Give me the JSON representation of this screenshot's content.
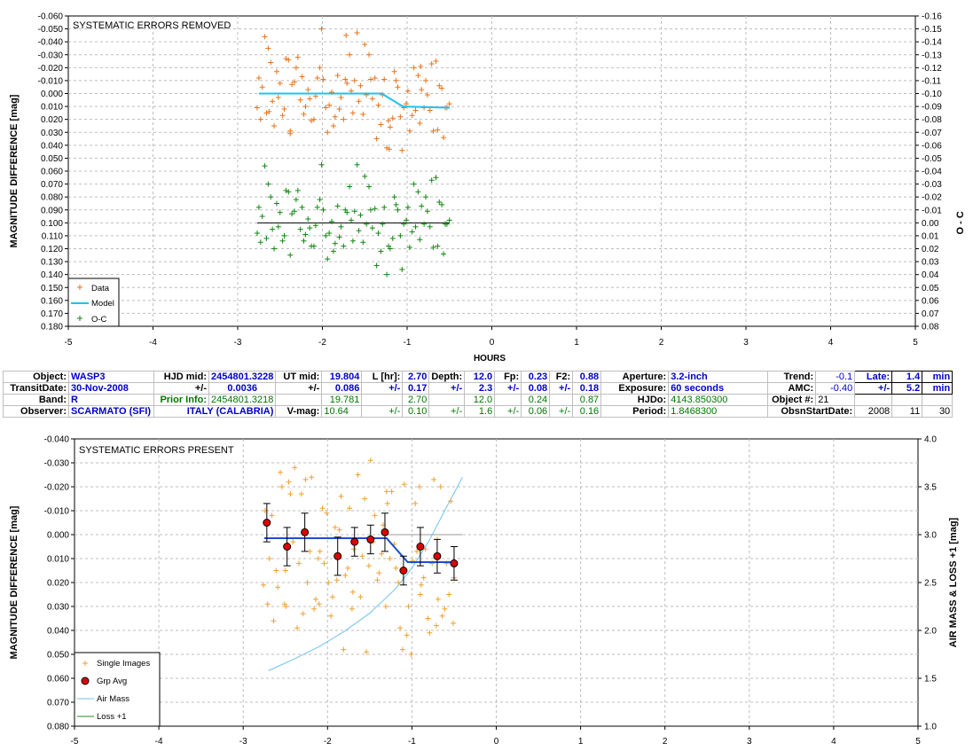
{
  "top_chart": {
    "title": "SYSTEMATIC ERRORS REMOVED",
    "ylabel": "MAGNITUDE DIFFERENCE [mag]",
    "y2label": "O - C",
    "xlabel": "HOURS",
    "xlim": [
      -5,
      5
    ],
    "ylim": [
      -0.06,
      0.18
    ],
    "y2lim": [
      -0.16,
      0.08
    ],
    "x_ticks": [
      "-5",
      "-4",
      "-3",
      "-2",
      "-1",
      "0",
      "1",
      "2",
      "3",
      "4",
      "5"
    ],
    "y_ticks": [
      "-0.060",
      "-0.050",
      "-0.040",
      "-0.030",
      "-0.020",
      "-0.010",
      "0.000",
      "0.010",
      "0.020",
      "0.030",
      "0.040",
      "0.050",
      "0.060",
      "0.070",
      "0.080",
      "0.090",
      "0.100",
      "0.110",
      "0.120",
      "0.130",
      "0.140",
      "0.150",
      "0.160",
      "0.170",
      "0.180"
    ],
    "y2_ticks": [
      "-0.16",
      "-0.15",
      "-0.14",
      "-0.13",
      "-0.12",
      "-0.11",
      "-0.10",
      "-0.09",
      "-0.08",
      "-0.07",
      "-0.06",
      "-0.05",
      "-0.04",
      "-0.03",
      "-0.02",
      "-0.01",
      "0.00",
      "0.01",
      "0.02",
      "0.03",
      "0.04",
      "0.05",
      "0.06",
      "0.07",
      "0.08"
    ],
    "legend": [
      "Data",
      "Model",
      "O-C"
    ],
    "colors": {
      "data": "#e8731a",
      "model": "#1ec3ee",
      "oc": "#118811",
      "axis": "#000000"
    }
  },
  "bottom_chart": {
    "title": "SYSTEMATIC ERRORS PRESENT",
    "ylabel": "MAGNITUDE DIFFERENCE [mag]",
    "y2label": "AIR MASS & LOSS +1 [mag]",
    "xlim": [
      -5,
      5
    ],
    "ylim": [
      -0.04,
      0.08
    ],
    "y2lim": [
      1.0,
      4.0
    ],
    "x_ticks": [
      "-5",
      "-4",
      "-3",
      "-2",
      "-1",
      "0",
      "1",
      "2",
      "3",
      "4",
      "5"
    ],
    "y_ticks": [
      "-0.040",
      "-0.030",
      "-0.020",
      "-0.010",
      "0.000",
      "0.010",
      "0.020",
      "0.030",
      "0.040",
      "0.050",
      "0.060",
      "0.070",
      "0.080"
    ],
    "y2_ticks": [
      "4.0",
      "3.5",
      "3.0",
      "2.5",
      "2.0",
      "1.5",
      "1.0"
    ],
    "legend": [
      "Single Images",
      "Grp Avg",
      "Air Mass",
      "Loss +1"
    ],
    "colors": {
      "single": "#f0a030",
      "grp": "#dd0000",
      "model": "#1e4fd0",
      "airmass": "#6ec3ee",
      "loss": "#2a8a2a"
    }
  },
  "info_table": {
    "row1": [
      "Object:",
      "WASP3",
      "HJD mid:",
      "2454801.3228",
      "UT mid:",
      "19.804",
      "L [hr]:",
      "2.70",
      "Depth:",
      "12.0",
      "Fp:",
      "0.23",
      "F2:",
      "0.88",
      "Aperture:",
      "3.2-inch",
      "Trend:",
      "-0.1",
      "Late:",
      "1.4",
      "min"
    ],
    "row2": [
      "TransitDate:",
      "30-Nov-2008",
      "+/-",
      "0.0036",
      "+/-",
      "0.086",
      "+/-",
      "0.17",
      "+/-",
      "2.3",
      "+/-",
      "0.08",
      "+/-",
      "0.18",
      "Exposure:",
      "60 seconds",
      "AMC:",
      "-0.40",
      "+/-",
      "5.2",
      "min"
    ],
    "row3": [
      "Band:",
      "R",
      "Prior Info:",
      "2454801.3218",
      "",
      "19.781",
      "",
      "2.70",
      "",
      "12.0",
      "",
      "0.24",
      "",
      "0.87",
      "HJDo:",
      "4143.850300",
      "Object #:",
      "21",
      "",
      "",
      ""
    ],
    "row4": [
      "Observer:",
      "SCARMATO (SFI)",
      "ITALY (CALABRIA)",
      "V-mag:",
      "10.64",
      "+/-",
      "0.10",
      "+/-",
      "1.6",
      "+/-",
      "0.06",
      "+/-",
      "0.16",
      "Period:",
      "1.8468300",
      "ObsnStartDate:",
      "2008",
      "11",
      "30"
    ]
  },
  "chart_data": [
    {
      "type": "scatter",
      "title": "SYSTEMATIC ERRORS REMOVED",
      "xlabel": "HOURS",
      "ylabel": "MAGNITUDE DIFFERENCE [mag]",
      "y2label": "O - C",
      "xlim": [
        -5,
        5
      ],
      "ylim": [
        -0.06,
        0.18
      ],
      "y_inverted": true,
      "grid": true,
      "legend_position": "bottom-left",
      "series": [
        {
          "name": "Data",
          "x": [
            -2.77,
            -2.75,
            -2.73,
            -2.71,
            -2.68,
            -2.66,
            -2.64,
            -2.61,
            -2.59,
            -2.57,
            -2.54,
            -2.52,
            -2.5,
            -2.47,
            -2.45,
            -2.43,
            -2.4,
            -2.38,
            -2.36,
            -2.33,
            -2.31,
            -2.29,
            -2.26,
            -2.24,
            -2.22,
            -2.2,
            -2.17,
            -2.15,
            -2.13,
            -2.1,
            -2.08,
            -2.06,
            -2.03,
            -2.01,
            -1.99,
            -1.96,
            -1.94,
            -1.92,
            -1.89,
            -1.87,
            -1.85,
            -1.82,
            -1.8,
            -1.78,
            -1.75,
            -1.73,
            -1.71,
            -1.68,
            -1.66,
            -1.64,
            -1.62,
            -1.59,
            -1.57,
            -1.55,
            -1.52,
            -1.5,
            -1.48,
            -1.45,
            -1.43,
            -1.41,
            -1.38,
            -1.36,
            -1.34,
            -1.31,
            -1.29,
            -1.27,
            -1.24,
            -1.22,
            -1.2,
            -1.17,
            -1.15,
            -1.13,
            -1.11,
            -1.08,
            -1.06,
            -1.04,
            -1.01,
            -0.99,
            -0.97,
            -0.94,
            -0.92,
            -0.9,
            -0.87,
            -0.85,
            -0.83,
            -0.8,
            -0.78,
            -0.76,
            -0.73,
            -0.71,
            -0.69,
            -0.66,
            -0.64,
            -0.62,
            -0.59,
            -0.57,
            -0.55,
            -0.53,
            -0.5,
            -2.63,
            -2.38,
            -1.72,
            -1.21,
            -0.84
          ],
          "y": [
            0.011,
            -0.012,
            0.02,
            -0.005,
            -0.044,
            0.015,
            -0.035,
            -0.024,
            0.006,
            0.025,
            -0.017,
            0.003,
            -0.008,
            0.017,
            0.012,
            -0.027,
            -0.026,
            0.029,
            -0.007,
            -0.009,
            -0.02,
            -0.028,
            0.005,
            -0.013,
            0.016,
            0.01,
            -0.003,
            0.004,
            0.021,
            0.02,
            0.002,
            -0.012,
            -0.02,
            -0.05,
            -0.011,
            0.011,
            0.03,
            0.009,
            -0.001,
            0.025,
            0.018,
            -0.014,
            0.012,
            0.003,
            0.02,
            -0.011,
            -0.008,
            -0.03,
            -0.002,
            0.015,
            -0.01,
            -0.047,
            0.006,
            -0.006,
            0.016,
            -0.038,
            0.001,
            -0.03,
            -0.011,
            0.004,
            -0.012,
            0.035,
            0.009,
            0.024,
            0.001,
            -0.011,
            0.042,
            0.021,
            0.026,
            0.019,
            -0.017,
            -0.01,
            -0.005,
            0.018,
            0.044,
            0.011,
            0.008,
            -0.002,
            0.029,
            0.017,
            -0.02,
            0.013,
            -0.014,
            0.023,
            -0.003,
            0.011,
            -0.01,
            0.001,
            0.013,
            -0.023,
            0.029,
            -0.025,
            0.028,
            -0.006,
            -0.004,
            0.034,
            0.011,
            0.011,
            0.008,
            0.014,
            0.031,
            -0.045,
            0.043,
            -0.021
          ]
        },
        {
          "name": "Model",
          "x": [
            -2.75,
            -1.4,
            -1.3,
            -1.05,
            -0.5
          ],
          "y": [
            0.0,
            0.0,
            0.0,
            0.01,
            0.011
          ]
        },
        {
          "name": "O-C",
          "x": [
            -2.77,
            -2.75,
            -2.73,
            -2.71,
            -2.68,
            -2.66,
            -2.64,
            -2.61,
            -2.59,
            -2.57,
            -2.54,
            -2.52,
            -2.5,
            -2.47,
            -2.45,
            -2.43,
            -2.4,
            -2.38,
            -2.36,
            -2.33,
            -2.31,
            -2.29,
            -2.26,
            -2.24,
            -2.22,
            -2.2,
            -2.17,
            -2.15,
            -2.13,
            -2.1,
            -2.08,
            -2.06,
            -2.03,
            -2.01,
            -1.99,
            -1.96,
            -1.94,
            -1.92,
            -1.89,
            -1.87,
            -1.85,
            -1.82,
            -1.8,
            -1.78,
            -1.75,
            -1.73,
            -1.71,
            -1.68,
            -1.66,
            -1.64,
            -1.62,
            -1.59,
            -1.57,
            -1.55,
            -1.52,
            -1.5,
            -1.48,
            -1.45,
            -1.43,
            -1.41,
            -1.38,
            -1.36,
            -1.34,
            -1.31,
            -1.29,
            -1.27,
            -1.24,
            -1.22,
            -1.2,
            -1.17,
            -1.15,
            -1.13,
            -1.11,
            -1.08,
            -1.06,
            -1.04,
            -1.01,
            -0.99,
            -0.97,
            -0.94,
            -0.92,
            -0.9,
            -0.87,
            -0.85,
            -0.83,
            -0.8,
            -0.78,
            -0.76,
            -0.73,
            -0.71,
            -0.69,
            -0.66,
            -0.64,
            -0.62,
            -0.59,
            -0.57,
            -0.55,
            -0.53,
            -0.5
          ],
          "y": [
            0.008,
            -0.012,
            0.015,
            -0.005,
            -0.044,
            0.012,
            -0.03,
            -0.02,
            0.005,
            0.02,
            -0.015,
            0.003,
            -0.008,
            0.014,
            0.01,
            -0.025,
            -0.024,
            0.025,
            -0.007,
            -0.009,
            -0.018,
            -0.025,
            0.005,
            -0.012,
            0.014,
            0.009,
            -0.003,
            0.004,
            0.018,
            0.018,
            0.002,
            -0.012,
            -0.018,
            -0.045,
            -0.01,
            0.01,
            0.028,
            0.008,
            -0.001,
            0.022,
            0.016,
            -0.013,
            0.011,
            0.003,
            0.018,
            -0.01,
            -0.008,
            -0.028,
            -0.002,
            0.014,
            -0.009,
            -0.045,
            0.006,
            -0.006,
            0.015,
            -0.036,
            0.001,
            -0.028,
            -0.01,
            0.004,
            -0.011,
            0.033,
            0.008,
            0.022,
            0.001,
            -0.012,
            0.04,
            0.018,
            0.02,
            0.012,
            -0.02,
            -0.014,
            -0.01,
            0.01,
            0.036,
            0.001,
            -0.002,
            -0.012,
            0.019,
            0.007,
            -0.03,
            0.003,
            -0.024,
            0.013,
            -0.013,
            0.001,
            -0.02,
            -0.009,
            0.003,
            -0.033,
            0.019,
            -0.035,
            0.018,
            -0.016,
            -0.014,
            0.024,
            0.001,
            0.001,
            -0.002
          ]
        }
      ]
    },
    {
      "type": "scatter",
      "title": "SYSTEMATIC ERRORS PRESENT",
      "ylabel": "MAGNITUDE DIFFERENCE [mag]",
      "y2label": "AIR MASS & LOSS +1 [mag]",
      "xlim": [
        -5,
        5
      ],
      "ylim": [
        -0.04,
        0.08
      ],
      "y2lim": [
        1.0,
        4.0
      ],
      "y_inverted": true,
      "grid": true,
      "legend_position": "bottom-left",
      "series": [
        {
          "name": "Single Images",
          "x": [
            -2.76,
            -2.74,
            -2.71,
            -2.69,
            -2.66,
            -2.64,
            -2.61,
            -2.59,
            -2.56,
            -2.54,
            -2.51,
            -2.49,
            -2.46,
            -2.44,
            -2.41,
            -2.39,
            -2.36,
            -2.34,
            -2.31,
            -2.29,
            -2.26,
            -2.24,
            -2.21,
            -2.19,
            -2.16,
            -2.14,
            -2.11,
            -2.09,
            -2.06,
            -2.04,
            -2.01,
            -1.99,
            -1.96,
            -1.94,
            -1.91,
            -1.89,
            -1.86,
            -1.84,
            -1.81,
            -1.79,
            -1.76,
            -1.74,
            -1.71,
            -1.69,
            -1.66,
            -1.64,
            -1.61,
            -1.59,
            -1.56,
            -1.54,
            -1.51,
            -1.49,
            -1.46,
            -1.44,
            -1.41,
            -1.39,
            -1.36,
            -1.34,
            -1.31,
            -1.29,
            -1.26,
            -1.24,
            -1.21,
            -1.19,
            -1.16,
            -1.14,
            -1.11,
            -1.09,
            -1.06,
            -1.04,
            -1.01,
            -0.99,
            -0.96,
            -0.94,
            -0.91,
            -0.89,
            -0.86,
            -0.84,
            -0.81,
            -0.79,
            -0.76,
            -0.74,
            -0.71,
            -0.69,
            -0.66,
            -0.64,
            -0.61,
            -0.59,
            -0.56,
            -0.54,
            -0.51,
            -0.5,
            -0.7,
            -0.9,
            -1.3,
            -1.7,
            -2.1,
            -2.5
          ],
          "y": [
            0.021,
            -0.01,
            0.029,
            0.01,
            -0.008,
            0.036,
            0.015,
            0.022,
            -0.026,
            -0.02,
            0.029,
            0.03,
            -0.022,
            -0.017,
            0.003,
            -0.028,
            0.039,
            0.012,
            -0.017,
            0.033,
            -0.023,
            0.02,
            0.007,
            -0.024,
            0.031,
            0.027,
            0.01,
            0.007,
            -0.011,
            0.012,
            -0.009,
            0.02,
            0.034,
            0.026,
            -0.003,
            0.019,
            -0.002,
            -0.016,
            0.048,
            0.017,
            0.014,
            -0.011,
            0.031,
            0.006,
            0.003,
            -0.025,
            0.026,
            0.009,
            -0.015,
            0.049,
            0.013,
            -0.031,
            0.003,
            -0.008,
            0.019,
            0.016,
            0.008,
            -0.004,
            0.03,
            -0.013,
            0.01,
            -0.018,
            0.004,
            0.014,
            0.02,
            0.039,
            0.048,
            -0.021,
            0.042,
            0.03,
            0.05,
            0.011,
            -0.013,
            0.007,
            -0.02,
            0.021,
            0.018,
            0.006,
            0.035,
            0.041,
            0.012,
            -0.023,
            0.038,
            0.027,
            -0.02,
            0.034,
            0.031,
            0.012,
            0.025,
            -0.014,
            0.037,
            0.018,
            0.002,
            0.025,
            -0.018,
            0.024,
            0.029,
            0.015
          ]
        },
        {
          "name": "Grp Avg",
          "x": [
            -2.72,
            -2.48,
            -2.27,
            -1.88,
            -1.68,
            -1.49,
            -1.32,
            -1.1,
            -0.9,
            -0.7,
            -0.5
          ],
          "y": [
            -0.005,
            0.005,
            -0.001,
            0.009,
            0.003,
            0.002,
            -0.001,
            0.015,
            0.005,
            0.009,
            0.012
          ],
          "err": [
            0.008,
            0.008,
            0.008,
            0.008,
            0.006,
            0.006,
            0.008,
            0.006,
            0.008,
            0.007,
            0.007
          ]
        },
        {
          "name": "Model",
          "x": [
            -2.75,
            -1.35,
            -1.3,
            -1.05,
            -0.5
          ],
          "y": [
            0.0015,
            0.0015,
            0.0015,
            0.0115,
            0.0115
          ]
        },
        {
          "name": "Air Mass",
          "x": [
            -2.7,
            -2.4,
            -2.1,
            -1.8,
            -1.5,
            -1.2,
            -1.0,
            -0.8,
            -0.6,
            -0.4
          ],
          "y": [
            1.58,
            1.7,
            1.83,
            1.99,
            2.18,
            2.43,
            2.65,
            2.93,
            3.27,
            3.6
          ]
        },
        {
          "name": "Loss +1",
          "x": [
            -1.3,
            -0.4
          ],
          "y": [
            3.0,
            3.0
          ]
        }
      ]
    }
  ]
}
